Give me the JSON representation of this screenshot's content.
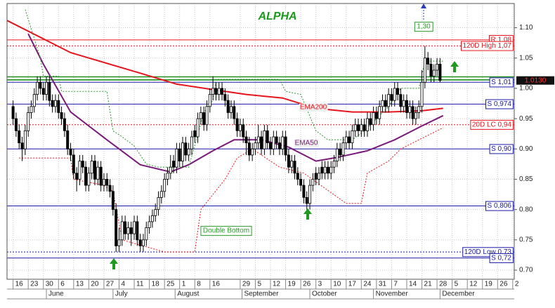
{
  "chart_data": {
    "type": "candlestick",
    "title": "ALPHA",
    "title_color": "#1a9a1a",
    "ylim": [
      0.685,
      1.14
    ],
    "yticks": [
      {
        "value": 0.7,
        "label": "0.70"
      },
      0.75,
      {
        "value": 0.8,
        "label": "0.80"
      },
      0.85,
      {
        "value": 0.9,
        "label": "0.90"
      },
      0.95,
      {
        "value": 1,
        "label": "1.00"
      },
      1.05,
      {
        "value": 1.1,
        "label": "1.10"
      }
    ],
    "xlim": [
      -2,
      165.5
    ],
    "xticks": [
      {
        "value": 0,
        "label": "16"
      },
      {
        "value": 5,
        "label": "23"
      },
      {
        "value": 10,
        "label": "30"
      },
      {
        "value": 15,
        "label": "6"
      },
      {
        "value": 20,
        "label": "13"
      },
      {
        "value": 25,
        "label": "20"
      },
      {
        "value": 30,
        "label": "27"
      },
      {
        "value": 35,
        "label": "4"
      },
      {
        "value": 40,
        "label": "11"
      },
      {
        "value": 45,
        "label": "18"
      },
      {
        "value": 50,
        "label": "25"
      },
      {
        "value": 55,
        "label": "1"
      },
      {
        "value": 60,
        "label": "8"
      },
      {
        "value": 65,
        "label": "16"
      },
      {
        "value": 75,
        "label": "29"
      },
      {
        "value": 80,
        "label": "5"
      },
      {
        "value": 85,
        "label": "12"
      },
      {
        "value": 90,
        "label": "19"
      },
      {
        "value": 95,
        "label": "26"
      },
      {
        "value": 100,
        "label": "3"
      },
      {
        "value": 105,
        "label": "10"
      },
      {
        "value": 110,
        "label": "17"
      },
      {
        "value": 115,
        "label": "24"
      },
      {
        "value": 120,
        "label": "31"
      },
      {
        "value": 125,
        "label": "7"
      },
      {
        "value": 130,
        "label": "14"
      },
      {
        "value": 135,
        "label": "21"
      },
      {
        "value": 140,
        "label": "28"
      },
      {
        "value": 145,
        "label": "5"
      },
      {
        "value": 150,
        "label": "12"
      },
      {
        "value": 155,
        "label": "19"
      },
      {
        "value": 160,
        "label": "26"
      },
      {
        "value": 165,
        "label": "2"
      }
    ],
    "months": [
      {
        "value": 11,
        "label": "June"
      },
      {
        "value": 33,
        "label": "July"
      },
      {
        "value": 53.5,
        "label": "August"
      },
      {
        "value": 75.6,
        "label": "September"
      },
      {
        "value": 98,
        "label": "October"
      },
      {
        "value": 119,
        "label": "November"
      },
      {
        "value": 141,
        "label": "December"
      }
    ],
    "grid": true,
    "up_color": "#ffffff",
    "down_color": "#000000",
    "candles": [
      [
        0.97,
        0.98,
        0.94,
        0.95
      ],
      [
        0.95,
        0.96,
        0.92,
        0.93
      ],
      [
        0.93,
        0.94,
        0.9,
        0.91
      ],
      [
        0.91,
        0.92,
        0.88,
        0.9
      ],
      [
        0.9,
        0.94,
        0.89,
        0.93
      ],
      [
        0.93,
        0.97,
        0.92,
        0.96
      ],
      [
        0.96,
        0.98,
        0.95,
        0.97
      ],
      [
        0.97,
        1.0,
        0.96,
        0.99
      ],
      [
        0.99,
        1.02,
        0.98,
        1.01
      ],
      [
        1.01,
        1.02,
        0.99,
        1.0
      ],
      [
        1.0,
        1.01,
        0.98,
        0.99
      ],
      [
        0.99,
        1.02,
        0.98,
        1.01
      ],
      [
        1.01,
        1.02,
        0.97,
        0.98
      ],
      [
        0.98,
        0.99,
        0.96,
        0.97
      ],
      [
        0.97,
        0.99,
        0.96,
        0.98
      ],
      [
        0.98,
        0.99,
        0.95,
        0.96
      ],
      [
        0.96,
        0.97,
        0.94,
        0.95
      ],
      [
        0.95,
        0.96,
        0.92,
        0.93
      ],
      [
        0.93,
        0.94,
        0.89,
        0.9
      ],
      [
        0.9,
        0.91,
        0.88,
        0.89
      ],
      [
        0.89,
        0.9,
        0.85,
        0.86
      ],
      [
        0.86,
        0.87,
        0.83,
        0.85
      ],
      [
        0.85,
        0.89,
        0.84,
        0.88
      ],
      [
        0.88,
        0.89,
        0.86,
        0.87
      ],
      [
        0.87,
        0.88,
        0.83,
        0.84
      ],
      [
        0.84,
        0.87,
        0.83,
        0.86
      ],
      [
        0.86,
        0.89,
        0.85,
        0.88
      ],
      [
        0.88,
        0.89,
        0.84,
        0.85
      ],
      [
        0.85,
        0.88,
        0.84,
        0.87
      ],
      [
        0.87,
        0.88,
        0.83,
        0.84
      ],
      [
        0.84,
        0.86,
        0.83,
        0.85
      ],
      [
        0.85,
        0.86,
        0.83,
        0.84
      ],
      [
        0.84,
        0.85,
        0.82,
        0.83
      ],
      [
        0.83,
        0.84,
        0.79,
        0.8
      ],
      [
        0.8,
        0.81,
        0.73,
        0.74
      ],
      [
        0.74,
        0.77,
        0.73,
        0.75
      ],
      [
        0.75,
        0.79,
        0.74,
        0.78
      ],
      [
        0.78,
        0.79,
        0.75,
        0.76
      ],
      [
        0.76,
        0.78,
        0.75,
        0.77
      ],
      [
        0.77,
        0.78,
        0.74,
        0.76
      ],
      [
        0.76,
        0.79,
        0.75,
        0.78
      ],
      [
        0.78,
        0.79,
        0.74,
        0.75
      ],
      [
        0.75,
        0.76,
        0.73,
        0.74
      ],
      [
        0.74,
        0.76,
        0.73,
        0.75
      ],
      [
        0.75,
        0.78,
        0.74,
        0.77
      ],
      [
        0.77,
        0.79,
        0.76,
        0.78
      ],
      [
        0.78,
        0.8,
        0.77,
        0.79
      ],
      [
        0.79,
        0.81,
        0.78,
        0.8
      ],
      [
        0.8,
        0.83,
        0.79,
        0.82
      ],
      [
        0.82,
        0.84,
        0.81,
        0.83
      ],
      [
        0.83,
        0.86,
        0.82,
        0.85
      ],
      [
        0.85,
        0.87,
        0.84,
        0.86
      ],
      [
        0.86,
        0.89,
        0.85,
        0.87
      ],
      [
        0.88,
        0.89,
        0.86,
        0.87
      ],
      [
        0.87,
        0.91,
        0.86,
        0.9
      ],
      [
        0.9,
        0.91,
        0.87,
        0.88
      ],
      [
        0.88,
        0.92,
        0.87,
        0.91
      ],
      [
        0.91,
        0.92,
        0.88,
        0.89
      ],
      [
        0.89,
        0.91,
        0.88,
        0.9
      ],
      [
        0.9,
        0.93,
        0.89,
        0.92
      ],
      [
        0.93,
        0.94,
        0.91,
        0.92
      ],
      [
        0.92,
        0.96,
        0.91,
        0.95
      ],
      [
        0.95,
        0.97,
        0.94,
        0.96
      ],
      [
        0.96,
        0.97,
        0.93,
        0.94
      ],
      [
        0.94,
        0.98,
        0.93,
        0.97
      ],
      [
        0.97,
        1.0,
        0.96,
        0.99
      ],
      [
        0.99,
        1.02,
        0.98,
        1.0
      ],
      [
        1.0,
        1.01,
        0.98,
        0.99
      ],
      [
        0.99,
        1.01,
        0.98,
        1.0
      ],
      [
        1.0,
        1.01,
        0.98,
        0.99
      ],
      [
        0.99,
        1.0,
        0.97,
        0.98
      ],
      [
        0.98,
        0.99,
        0.95,
        0.96
      ],
      [
        0.96,
        0.98,
        0.95,
        0.97
      ],
      [
        0.97,
        0.98,
        0.94,
        0.95
      ],
      [
        0.95,
        0.96,
        0.92,
        0.93
      ],
      [
        0.93,
        0.95,
        0.92,
        0.94
      ],
      [
        0.94,
        0.95,
        0.91,
        0.92
      ],
      [
        0.92,
        0.93,
        0.89,
        0.91
      ],
      [
        0.91,
        0.92,
        0.88,
        0.89
      ],
      [
        0.89,
        0.91,
        0.88,
        0.9
      ],
      [
        0.9,
        0.92,
        0.89,
        0.91
      ],
      [
        0.91,
        0.94,
        0.9,
        0.92
      ],
      [
        0.92,
        0.93,
        0.89,
        0.9
      ],
      [
        0.9,
        0.94,
        0.89,
        0.93
      ],
      [
        0.93,
        0.94,
        0.9,
        0.91
      ],
      [
        0.91,
        0.92,
        0.89,
        0.9
      ],
      [
        0.9,
        0.93,
        0.89,
        0.92
      ],
      [
        0.92,
        0.93,
        0.9,
        0.91
      ],
      [
        0.91,
        0.92,
        0.89,
        0.9
      ],
      [
        0.9,
        0.93,
        0.89,
        0.92
      ],
      [
        0.92,
        0.93,
        0.88,
        0.89
      ],
      [
        0.89,
        0.9,
        0.86,
        0.87
      ],
      [
        0.87,
        0.89,
        0.86,
        0.88
      ],
      [
        0.88,
        0.89,
        0.85,
        0.86
      ],
      [
        0.86,
        0.87,
        0.84,
        0.85
      ],
      [
        0.85,
        0.86,
        0.83,
        0.84
      ],
      [
        0.84,
        0.85,
        0.81,
        0.82
      ],
      [
        0.82,
        0.83,
        0.8,
        0.81
      ],
      [
        0.81,
        0.85,
        0.8,
        0.84
      ],
      [
        0.84,
        0.86,
        0.83,
        0.85
      ],
      [
        0.86,
        0.87,
        0.84,
        0.85
      ],
      [
        0.85,
        0.87,
        0.84,
        0.86
      ],
      [
        0.87,
        0.88,
        0.85,
        0.86
      ],
      [
        0.86,
        0.88,
        0.85,
        0.87
      ],
      [
        0.87,
        0.88,
        0.85,
        0.86
      ],
      [
        0.86,
        0.88,
        0.85,
        0.87
      ],
      [
        0.87,
        0.89,
        0.86,
        0.88
      ],
      [
        0.88,
        0.91,
        0.87,
        0.9
      ],
      [
        0.9,
        0.91,
        0.88,
        0.89
      ],
      [
        0.89,
        0.92,
        0.88,
        0.91
      ],
      [
        0.91,
        0.93,
        0.9,
        0.92
      ],
      [
        0.92,
        0.93,
        0.9,
        0.91
      ],
      [
        0.91,
        0.94,
        0.9,
        0.93
      ],
      [
        0.93,
        0.95,
        0.92,
        0.94
      ],
      [
        0.94,
        0.95,
        0.92,
        0.93
      ],
      [
        0.93,
        0.95,
        0.92,
        0.94
      ],
      [
        0.94,
        0.95,
        0.92,
        0.93
      ],
      [
        0.93,
        0.96,
        0.92,
        0.95
      ],
      [
        0.95,
        0.96,
        0.93,
        0.94
      ],
      [
        0.94,
        0.97,
        0.93,
        0.96
      ],
      [
        0.96,
        0.97,
        0.94,
        0.95
      ],
      [
        0.95,
        0.98,
        0.94,
        0.97
      ],
      [
        0.97,
        0.99,
        0.96,
        0.98
      ],
      [
        0.98,
        0.99,
        0.96,
        0.97
      ],
      [
        0.97,
        1.0,
        0.96,
        0.99
      ],
      [
        0.99,
        1.0,
        0.97,
        0.98
      ],
      [
        0.98,
        1.01,
        0.97,
        1.0
      ],
      [
        1.0,
        1.01,
        0.98,
        0.99
      ],
      [
        0.99,
        1.0,
        0.96,
        0.97
      ],
      [
        0.97,
        0.99,
        0.96,
        0.98
      ],
      [
        0.98,
        0.99,
        0.95,
        0.96
      ],
      [
        0.96,
        0.98,
        0.95,
        0.97
      ],
      [
        0.97,
        0.98,
        0.94,
        0.95
      ],
      [
        0.95,
        0.97,
        0.94,
        0.96
      ],
      [
        0.96,
        0.98,
        0.95,
        0.97
      ],
      [
        0.97,
        1.03,
        0.96,
        1.01
      ],
      [
        1.01,
        1.07,
        1.0,
        1.05
      ],
      [
        1.05,
        1.06,
        1.03,
        1.04
      ],
      [
        1.04,
        1.05,
        1.01,
        1.02
      ],
      [
        1.02,
        1.04,
        1.01,
        1.03
      ],
      [
        1.03,
        1.05,
        1.02,
        1.04
      ],
      [
        1.04,
        1.05,
        1.01,
        1.013
      ]
    ],
    "lines": [
      {
        "name": "EMA200",
        "color": "#e8141b",
        "x": [
          -2,
          19,
          42,
          54,
          66,
          77,
          89,
          100,
          112,
          124,
          135,
          142
        ],
        "values": [
          1.112,
          1.059,
          1.025,
          1.007,
          0.998,
          0.99,
          0.984,
          0.967,
          0.961,
          0.961,
          0.963,
          0.967
        ]
      },
      {
        "name": "EMA50",
        "color": "#7a1a7a",
        "x": [
          5,
          10,
          19,
          31,
          42,
          52,
          58,
          66,
          73,
          82,
          91,
          100,
          107,
          117,
          126,
          135,
          142
        ],
        "values": [
          1.09,
          1.04,
          0.961,
          0.915,
          0.874,
          0.862,
          0.874,
          0.897,
          0.915,
          0.915,
          0.903,
          0.88,
          0.886,
          0.897,
          0.915,
          0.938,
          0.955
        ]
      },
      {
        "color": "#2a9a2a",
        "style": "dotted",
        "x": [
          4,
          9,
          10,
          15,
          16,
          31,
          33,
          36,
          40,
          44,
          48,
          58,
          63,
          66,
          67,
          88,
          90,
          95,
          100,
          104,
          112,
          116,
          124,
          128,
          134,
          136,
          142
        ],
        "values": [
          1.13,
          1.05,
          1.02,
          1.02,
          0.995,
          0.995,
          0.93,
          0.92,
          0.905,
          0.875,
          0.87,
          0.87,
          0.96,
          0.98,
          1.015,
          1.015,
          0.995,
          0.99,
          0.93,
          0.915,
          0.915,
          0.93,
          0.97,
          1.0,
          1.0,
          1.045,
          1.045
        ]
      },
      {
        "color": "#e8141b",
        "style": "dotted",
        "x": [
          2,
          19,
          20,
          30,
          33,
          36,
          50,
          60,
          62,
          70,
          74,
          79,
          88,
          96,
          110,
          115,
          117,
          124,
          128,
          136,
          142
        ],
        "values": [
          0.885,
          0.885,
          0.85,
          0.84,
          0.83,
          0.75,
          0.73,
          0.73,
          0.8,
          0.85,
          0.885,
          0.9,
          0.87,
          0.86,
          0.81,
          0.81,
          0.86,
          0.88,
          0.9,
          0.92,
          0.935
        ]
      }
    ],
    "levels": [
      {
        "value": 1.08,
        "label": "R 1,08",
        "color": "#e8141b",
        "style": "solid"
      },
      {
        "value": 1.07,
        "label": "120D High 1,07",
        "color": "#e8141b",
        "style": "dotted"
      },
      {
        "value": 1.019,
        "color": "#1f8f1f",
        "style": "solid"
      },
      {
        "value": 1.014,
        "color": "#1f8f1f",
        "style": "solid"
      },
      {
        "value": 1.01,
        "label": "S 1,01",
        "color": "#1a1aa8",
        "style": "solid"
      },
      {
        "value": 0.974,
        "label": "S 0,974",
        "color": "#1a1aa8",
        "style": "solid"
      },
      {
        "value": 0.94,
        "label": "20D LC 0,94",
        "color": "#e8141b",
        "style": "dotted"
      },
      {
        "value": 0.9,
        "label": "S 0,90",
        "color": "#1a1aa8",
        "style": "solid"
      },
      {
        "value": 0.806,
        "label": "S 0,806",
        "color": "#1a1aa8",
        "style": "solid"
      },
      {
        "value": 0.73,
        "label": "120D Low 0,73",
        "color": "#1a1aa8",
        "style": "dotted"
      },
      {
        "value": 0.72,
        "label": "S 0,72",
        "color": "#1a1aa8",
        "style": "solid"
      }
    ],
    "last_price": {
      "value": 1.013,
      "label": "1.0130"
    },
    "annotations": [
      {
        "text": "Double Bottom",
        "color": "#2a9a2a"
      },
      {
        "text": "1,30",
        "color": "#2a9a2a"
      }
    ]
  }
}
